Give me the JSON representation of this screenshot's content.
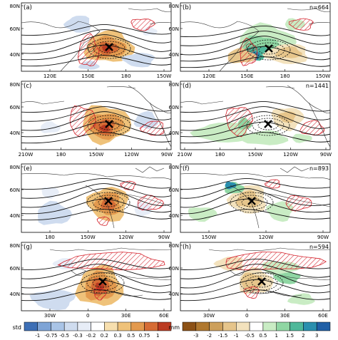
{
  "panels": [
    {
      "id": "a",
      "letter": "(a)",
      "n": "",
      "ylabels": [
        "80N",
        "60N",
        "40N"
      ],
      "xlabels": [
        "120E",
        "150E",
        "180",
        "150W"
      ]
    },
    {
      "id": "b",
      "letter": "(b)",
      "n": "n=664",
      "ylabels": [
        "80N",
        "60N",
        "40N"
      ],
      "xlabels": [
        "120E",
        "150E",
        "180",
        "150W"
      ]
    },
    {
      "id": "c",
      "letter": "(c)",
      "n": "",
      "ylabels": [
        "80N",
        "60N",
        "40N"
      ],
      "xlabels": [
        "210W",
        "180",
        "150W",
        "120W",
        "90W"
      ]
    },
    {
      "id": "d",
      "letter": "(d)",
      "n": "n=1441",
      "ylabels": [
        "80N",
        "60N",
        "40N"
      ],
      "xlabels": [
        "210W",
        "180",
        "150W",
        "120W",
        "90W"
      ]
    },
    {
      "id": "e",
      "letter": "(e)",
      "n": "",
      "ylabels": [
        "80N",
        "60N",
        "40N"
      ],
      "xlabels": [
        "180",
        "150W",
        "120W",
        "90W"
      ]
    },
    {
      "id": "f",
      "letter": "(f)",
      "n": "n=893",
      "ylabels": [
        "80N",
        "60N",
        "40N"
      ],
      "xlabels": [
        "150W",
        "120W",
        "90W"
      ]
    },
    {
      "id": "g",
      "letter": "(g)",
      "n": "",
      "ylabels": [
        "80N",
        "60N",
        "40N"
      ],
      "xlabels": [
        "30W",
        "0",
        "30E",
        "60E"
      ]
    },
    {
      "id": "h",
      "letter": "(h)",
      "n": "n=594",
      "ylabels": [
        "80N",
        "60N",
        "40N"
      ],
      "xlabels": [
        "30W",
        "0",
        "30E",
        "60E"
      ]
    }
  ],
  "colorbars": [
    {
      "unit": "std",
      "labels": [
        "-1",
        "-0.75",
        "-0.5",
        "-0.3",
        "-0.2",
        "0.2",
        "0.3",
        "0.5",
        "0.75",
        "1"
      ],
      "colors": [
        "#3d6fb6",
        "#7ea4d6",
        "#a9c4e6",
        "#cfdcef",
        "#e7edf7",
        "#ffffff",
        "#f7dfae",
        "#efc27a",
        "#e39a4e",
        "#d66c35",
        "#bb3b22"
      ]
    },
    {
      "unit": "mm",
      "labels": [
        "-3",
        "-2",
        "-1.5",
        "-1",
        "-0.5",
        "0.5",
        "1",
        "1.5",
        "2",
        "3"
      ],
      "colors": [
        "#8c5116",
        "#b0782f",
        "#cda05c",
        "#e6c58b",
        "#f3e2bd",
        "#ffffff",
        "#c9ecc4",
        "#8fd6a3",
        "#4fb89a",
        "#2a8fae",
        "#1f5fa6"
      ]
    }
  ]
}
